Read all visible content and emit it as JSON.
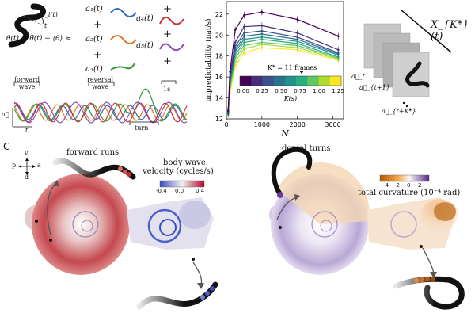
{
  "panel_a": {
    "theta_i": "θ_i(t)",
    "t_label": "t",
    "equation": "θ(t) = θ̃(t) − ⟨θ⟩ ≈",
    "terms": [
      "a₁(t)",
      "a₂(t)",
      "a₃(t)",
      "a₄(t)",
      "a₅(t)"
    ],
    "plus": "+",
    "mode_colors": [
      "#2d6db5",
      "#e07a1f",
      "#3a9a3a",
      "#cc3333",
      "#8a4fb3"
    ],
    "forward_wave": "forward\nwave",
    "reversal_wave": "reversal\nwave",
    "turn": "turn",
    "scale": "1s",
    "a_vec": "a⃗",
    "t_axis": "t"
  },
  "chart_data": {
    "type": "line",
    "xlabel": "N",
    "ylabel": "unpredictability (nat/s)",
    "xticks": [
      0,
      1000,
      2000,
      3000
    ],
    "yticks": [
      12,
      14,
      16,
      18,
      20,
      22
    ],
    "xlim": [
      0,
      3300
    ],
    "ylim": [
      12,
      23.2
    ],
    "x": [
      50,
      100,
      250,
      500,
      1000,
      2000,
      3150
    ],
    "annotation": "K* = 11 frames",
    "colorbar_label": "K(s)",
    "colorbar_ticks": [
      "0.00",
      "0.25",
      "0.50",
      "0.75",
      "1.00",
      "1.25"
    ],
    "colorbar_colors": [
      "#440154",
      "#472d7b",
      "#3b528b",
      "#2c728e",
      "#21918c",
      "#28ae80",
      "#5ec962",
      "#addc30",
      "#fde725"
    ],
    "series": [
      {
        "color": "#440154",
        "values": [
          12.8,
          16.5,
          20.5,
          21.9,
          22.2,
          21.5,
          19.9
        ]
      },
      {
        "color": "#46307e",
        "values": [
          12.7,
          16.0,
          19.3,
          20.8,
          20.9,
          20.2,
          18.6
        ]
      },
      {
        "color": "#3b518b",
        "values": [
          12.6,
          15.8,
          18.9,
          20.2,
          20.4,
          19.8,
          18.3
        ]
      },
      {
        "color": "#2c718e",
        "values": [
          12.6,
          15.6,
          18.6,
          19.9,
          20.1,
          19.6,
          18.2
        ]
      },
      {
        "color": "#21908d",
        "values": [
          12.5,
          15.4,
          18.4,
          19.6,
          19.8,
          19.4,
          18.1
        ]
      },
      {
        "color": "#27ad81",
        "values": [
          12.5,
          15.2,
          18.1,
          19.3,
          19.6,
          19.2,
          17.9
        ]
      },
      {
        "color": "#5cc863",
        "values": [
          12.4,
          15.0,
          17.8,
          19.0,
          19.3,
          19.0,
          17.8
        ]
      },
      {
        "color": "#aadc32",
        "values": [
          12.4,
          14.8,
          17.4,
          18.7,
          19.1,
          18.8,
          17.7
        ]
      },
      {
        "color": "#fde725",
        "values": [
          12.3,
          14.5,
          17.0,
          18.3,
          18.8,
          18.6,
          17.6
        ]
      }
    ]
  },
  "panel_b": {
    "stack_label": "X_{K*}(t)",
    "a_t": "a⃗_t",
    "a_t1": "a⃗_{t+1}",
    "a_tk": "a⃗_{t+K*}"
  },
  "panel_c": {
    "panel_letter": "C",
    "forward_runs": "forward runs",
    "dorsal_turns": "dorsal turns",
    "compass_v": "v",
    "compass_p": "p",
    "compass_a": "a",
    "compass_d": "d",
    "velocity_label_1": "body wave",
    "velocity_label_2": "velocity (cycles/s)",
    "velocity_ticks": [
      "-0.4",
      "0.0",
      "0.4"
    ],
    "curvature_label": "total curvature (10⁻⁴ rad)",
    "curvature_ticks": [
      "-4",
      "-2",
      "0",
      "2"
    ]
  }
}
